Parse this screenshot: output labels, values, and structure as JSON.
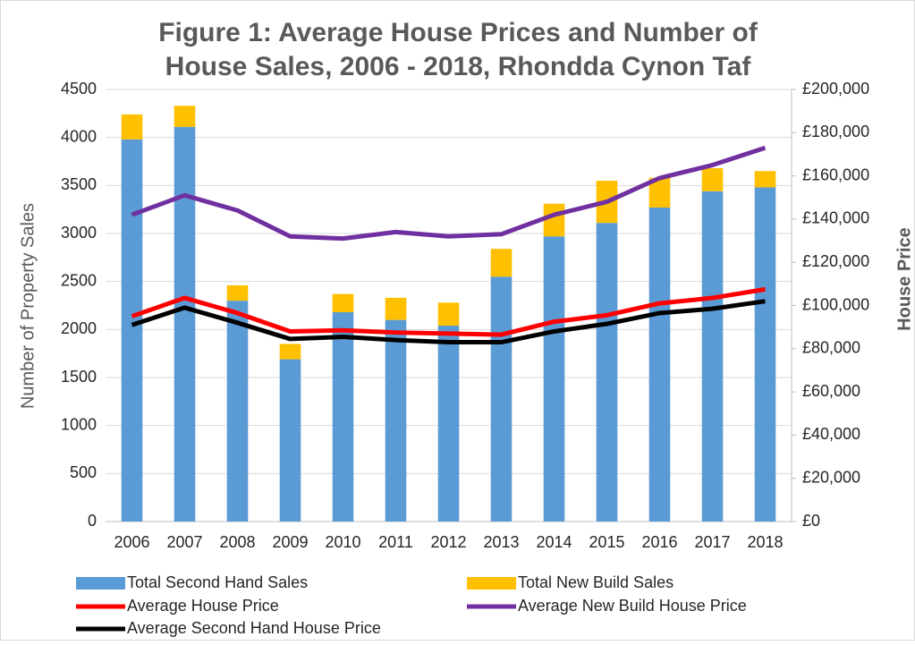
{
  "chart_data": {
    "type": "bar-line",
    "title": [
      "Figure 1: Average House Prices and Number of",
      "House Sales, 2006 - 2018, Rhondda Cynon Taf"
    ],
    "ylabel": "Number of Property Sales",
    "y2label": "House Price",
    "categories": [
      "2006",
      "2007",
      "2008",
      "2009",
      "2010",
      "2011",
      "2012",
      "2013",
      "2014",
      "2015",
      "2016",
      "2017",
      "2018"
    ],
    "ylim": [
      0,
      4500
    ],
    "yticks": [
      0,
      500,
      1000,
      1500,
      2000,
      2500,
      3000,
      3500,
      4000,
      4500
    ],
    "y2lim": [
      0,
      200000
    ],
    "y2ticks": [
      {
        "value": 0,
        "label": "£0"
      },
      {
        "value": 20000,
        "label": "£20,000"
      },
      {
        "value": 40000,
        "label": "£40,000"
      },
      {
        "value": 60000,
        "label": "£60,000"
      },
      {
        "value": 80000,
        "label": "£80,000"
      },
      {
        "value": 100000,
        "label": "£100,000"
      },
      {
        "value": 120000,
        "label": "£120,000"
      },
      {
        "value": 140000,
        "label": "£140,000"
      },
      {
        "value": 160000,
        "label": "£160,000"
      },
      {
        "value": 180000,
        "label": "£180,000"
      },
      {
        "value": 200000,
        "label": "£200,000"
      }
    ],
    "grid": true,
    "series": [
      {
        "name": "Total Second Hand Sales",
        "type": "bar",
        "color": "#5b9bd5",
        "values": [
          3980,
          4110,
          2300,
          1690,
          2180,
          2100,
          2040,
          2550,
          2970,
          3110,
          3270,
          3440,
          3480
        ]
      },
      {
        "name": "Total New Build Sales",
        "type": "bar",
        "color": "#ffc000",
        "values": [
          260,
          220,
          160,
          160,
          190,
          230,
          240,
          290,
          340,
          440,
          310,
          240,
          170
        ]
      },
      {
        "name": "Average House Price",
        "type": "line",
        "axis": "y2",
        "color": "#ff0000",
        "values": [
          95000,
          103500,
          96500,
          88000,
          88500,
          87500,
          87000,
          86500,
          92500,
          95500,
          101000,
          103500,
          107500
        ]
      },
      {
        "name": "Average New Build House Price",
        "type": "line",
        "axis": "y2",
        "color": "#7030a0",
        "values": [
          142000,
          151000,
          144000,
          132000,
          131000,
          134000,
          132000,
          133000,
          142000,
          148000,
          159000,
          165000,
          173000
        ]
      },
      {
        "name": "Average Second Hand House Price",
        "type": "line",
        "axis": "y2",
        "color": "#000000",
        "values": [
          91000,
          99000,
          92000,
          84500,
          85500,
          84000,
          83000,
          83000,
          88000,
          91500,
          96500,
          98500,
          102000
        ]
      }
    ]
  }
}
